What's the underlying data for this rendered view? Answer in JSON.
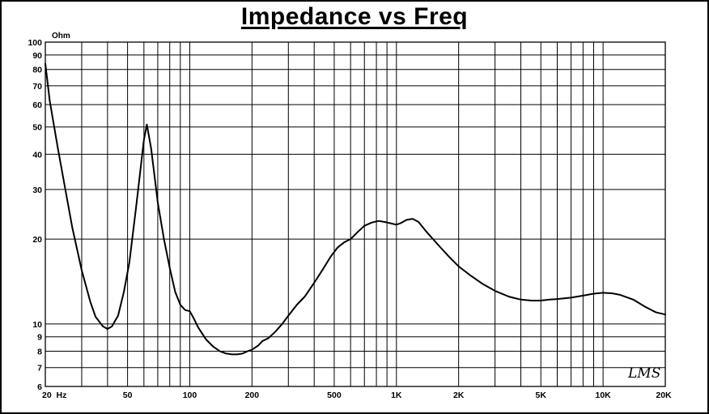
{
  "chart_data": {
    "type": "line",
    "title": "Impedance vs Freq",
    "ylabel": "Ohm",
    "xlabel": "",
    "xscale": "log",
    "yscale": "log",
    "xlim": [
      20,
      20000
    ],
    "ylim": [
      6,
      100
    ],
    "grid": true,
    "x_grid_lines": [
      30,
      40,
      50,
      60,
      70,
      80,
      90,
      100,
      200,
      300,
      400,
      500,
      600,
      700,
      800,
      900,
      1000,
      2000,
      3000,
      4000,
      5000,
      6000,
      7000,
      8000,
      9000,
      10000
    ],
    "y_grid_lines": [
      7,
      8,
      9,
      10,
      20,
      30,
      40,
      50,
      60,
      70,
      80,
      90
    ],
    "x_tick_labels": [
      {
        "value": 20,
        "label": "20  Hz"
      },
      {
        "value": 50,
        "label": "50"
      },
      {
        "value": 100,
        "label": "100"
      },
      {
        "value": 200,
        "label": "200"
      },
      {
        "value": 500,
        "label": "500"
      },
      {
        "value": 1000,
        "label": "1K"
      },
      {
        "value": 2000,
        "label": "2K"
      },
      {
        "value": 5000,
        "label": "5K"
      },
      {
        "value": 10000,
        "label": "10K"
      },
      {
        "value": 20000,
        "label": "20K"
      }
    ],
    "y_tick_labels": [
      {
        "value": 6,
        "label": "6"
      },
      {
        "value": 7,
        "label": "7"
      },
      {
        "value": 8,
        "label": "8"
      },
      {
        "value": 9,
        "label": "9"
      },
      {
        "value": 10,
        "label": "10"
      },
      {
        "value": 20,
        "label": "20"
      },
      {
        "value": 30,
        "label": "30"
      },
      {
        "value": 40,
        "label": "40"
      },
      {
        "value": 50,
        "label": "50"
      },
      {
        "value": 60,
        "label": "60"
      },
      {
        "value": 70,
        "label": "70"
      },
      {
        "value": 80,
        "label": "80"
      },
      {
        "value": 90,
        "label": "90"
      },
      {
        "value": 100,
        "label": "100"
      }
    ],
    "series": [
      {
        "color": "#000000",
        "x": [
          20,
          21,
          23,
          25,
          27,
          30,
          33,
          35,
          38,
          40,
          42,
          45,
          48,
          51,
          55,
          60,
          62,
          65,
          70,
          75,
          80,
          85,
          90,
          95,
          100,
          105,
          110,
          120,
          130,
          140,
          150,
          160,
          170,
          180,
          190,
          200,
          215,
          225,
          240,
          260,
          280,
          300,
          330,
          360,
          400,
          440,
          480,
          520,
          560,
          600,
          650,
          700,
          760,
          820,
          880,
          950,
          1000,
          1050,
          1120,
          1200,
          1280,
          1400,
          1600,
          1800,
          2000,
          2300,
          2600,
          3000,
          3500,
          4000,
          4500,
          5000,
          5500,
          6000,
          7000,
          8000,
          9000,
          10000,
          11000,
          12000,
          14000,
          16000,
          18000,
          20000
        ],
        "values": [
          84,
          62,
          42,
          30,
          22,
          15.5,
          12,
          10.6,
          9.8,
          9.6,
          9.8,
          10.7,
          13,
          16.5,
          26,
          45,
          51,
          42,
          27,
          20,
          15.8,
          13,
          11.7,
          11.2,
          11.1,
          10.4,
          9.7,
          8.8,
          8.3,
          8.0,
          7.85,
          7.8,
          7.8,
          7.85,
          8.0,
          8.1,
          8.4,
          8.7,
          8.9,
          9.4,
          10.0,
          10.7,
          11.7,
          12.5,
          14.0,
          15.6,
          17.3,
          18.7,
          19.5,
          20.0,
          21.2,
          22.3,
          22.9,
          23.2,
          23.0,
          22.7,
          22.5,
          22.8,
          23.4,
          23.6,
          23.0,
          21.2,
          19.0,
          17.3,
          16.0,
          14.8,
          13.9,
          13.1,
          12.5,
          12.2,
          12.1,
          12.1,
          12.2,
          12.25,
          12.4,
          12.6,
          12.8,
          12.9,
          12.85,
          12.7,
          12.2,
          11.5,
          11.0,
          10.8
        ]
      }
    ]
  },
  "brand_mark": "LMS"
}
